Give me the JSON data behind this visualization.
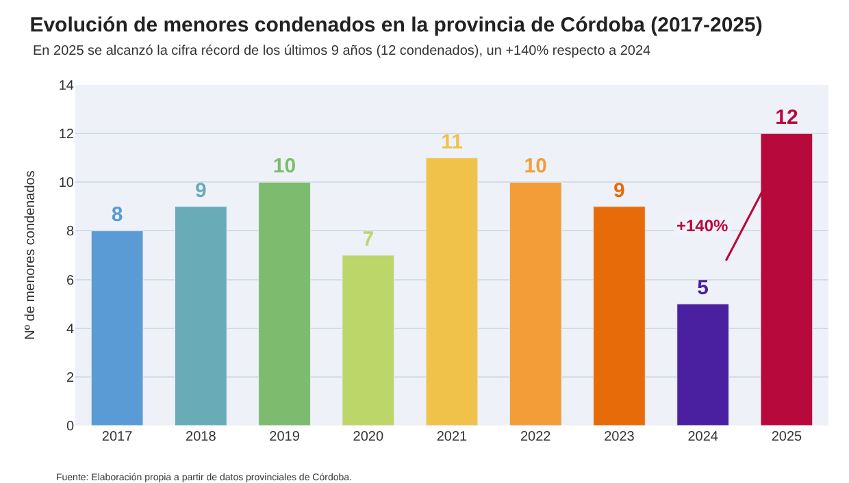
{
  "chart_data": {
    "type": "bar",
    "title": "Evolución de menores condenados en la provincia de Córdoba (2017-2025)",
    "subtitle": "En 2025 se alcanzó la cifra récord de los últimos 9 años (12 condenados), un +140% respecto a 2024",
    "ylabel": "Nº de menores condenados",
    "categories": [
      "2017",
      "2018",
      "2019",
      "2020",
      "2021",
      "2022",
      "2023",
      "2024",
      "2025"
    ],
    "values": [
      8,
      9,
      10,
      7,
      11,
      10,
      9,
      5,
      12
    ],
    "colors": [
      "#5b9bd5",
      "#6aabb8",
      "#7dbb6e",
      "#bcd66a",
      "#f0c24a",
      "#f29d38",
      "#e86b0a",
      "#4a1fa0",
      "#b8093c"
    ],
    "data_labels": true,
    "ylim": [
      0,
      14
    ],
    "yticks": [
      0,
      2,
      4,
      6,
      8,
      10,
      12,
      14
    ],
    "grid": "y",
    "annotations": [
      {
        "text": "+140%",
        "x": "2024",
        "y": 8.2
      },
      "Fuente: Elaboración propia a partir de datos provinciales de Córdoba."
    ]
  }
}
